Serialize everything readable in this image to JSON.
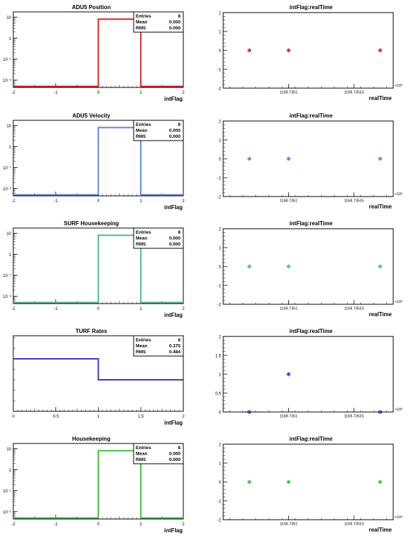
{
  "chart_data": [
    {
      "type": "histogram",
      "title": "ADU5 Position",
      "xlabel": "intFlag",
      "xlim": [
        -2,
        2
      ],
      "y_scale": "log",
      "y_ticks": [
        "10",
        "1",
        "10⁻¹",
        "10⁻²"
      ],
      "x_ticks": [
        "-2",
        "-1",
        "0",
        "1",
        "2"
      ],
      "bins": [
        {
          "x0": 0,
          "x1": 1,
          "value": 8
        }
      ],
      "color": "#cc2a2a",
      "stats": {
        "entries_label": "Entries",
        "entries": "8",
        "mean_label": "Mean",
        "mean": "0.000",
        "rms_label": "RMS",
        "rms": "0.000"
      }
    },
    {
      "type": "scatter",
      "title": "intFlag:realTime",
      "xlabel": "realTime",
      "ylim": [
        -2,
        2
      ],
      "y_ticks": [
        "2",
        "1",
        "0",
        "-1",
        "-2"
      ],
      "x_ticks": [
        "1168.7351",
        "1168.73515"
      ],
      "x_exponent": "×10⁶",
      "points": [
        {
          "x": 1168.73507,
          "y": 0
        },
        {
          "x": 1168.7351,
          "y": 0
        },
        {
          "x": 1168.73517,
          "y": 0
        }
      ],
      "color": "#cc2a2a"
    },
    {
      "type": "histogram",
      "title": "ADU5 Velocity",
      "xlabel": "intFlag",
      "xlim": [
        -2,
        2
      ],
      "y_scale": "log",
      "y_ticks": [
        "10",
        "1",
        "10⁻¹",
        "10⁻²"
      ],
      "x_ticks": [
        "-2",
        "-1",
        "0",
        "1",
        "2"
      ],
      "bins": [
        {
          "x0": 0,
          "x1": 1,
          "value": 8
        }
      ],
      "color": "#5b86d6",
      "stats": {
        "entries_label": "Entries",
        "entries": "8",
        "mean_label": "Mean",
        "mean": "0.000",
        "rms_label": "RMS",
        "rms": "0.000"
      }
    },
    {
      "type": "scatter",
      "title": "intFlag:realTime",
      "xlabel": "realTime",
      "ylim": [
        -2,
        2
      ],
      "y_ticks": [
        "2",
        "1",
        "0",
        "-1",
        "-2"
      ],
      "x_ticks": [
        "1168.7351",
        "1168.73515"
      ],
      "x_exponent": "×10⁶",
      "points": [
        {
          "x": 1168.73507,
          "y": 0
        },
        {
          "x": 1168.7351,
          "y": 0
        },
        {
          "x": 1168.73517,
          "y": 0
        }
      ],
      "color": "#5b86d6"
    },
    {
      "type": "histogram",
      "title": "SURF Housekeeping",
      "xlabel": "intFlag",
      "xlim": [
        -2,
        2
      ],
      "y_scale": "log",
      "y_ticks": [
        "10",
        "1",
        "10⁻¹",
        "10⁻²"
      ],
      "x_ticks": [
        "-2",
        "-1",
        "0",
        "1",
        "2"
      ],
      "bins": [
        {
          "x0": 0,
          "x1": 1,
          "value": 8
        }
      ],
      "color": "#4fb98a",
      "stats": {
        "entries_label": "Entries",
        "entries": "8",
        "mean_label": "Mean",
        "mean": "0.000",
        "rms_label": "RMS",
        "rms": "0.000"
      }
    },
    {
      "type": "scatter",
      "title": "intFlag:realTime",
      "xlabel": "realTime",
      "ylim": [
        -2,
        2
      ],
      "y_ticks": [
        "2",
        "1",
        "0",
        "-1",
        "-2"
      ],
      "x_ticks": [
        "1168.7351",
        "1168.73515"
      ],
      "x_exponent": "×10⁶",
      "points": [
        {
          "x": 1168.73507,
          "y": 0
        },
        {
          "x": 1168.7351,
          "y": 0
        },
        {
          "x": 1168.73517,
          "y": 0
        }
      ],
      "color": "#4fb98a"
    },
    {
      "type": "histogram",
      "title": "TURF Rates",
      "xlabel": "intFlag",
      "xlim": [
        0,
        2
      ],
      "ylim": [
        0,
        7.2
      ],
      "y_scale": "linear",
      "y_ticks": [],
      "x_ticks": [
        "0",
        "0.5",
        "1",
        "1.5",
        "2"
      ],
      "bins": [
        {
          "x0": 0,
          "x1": 1,
          "value": 5
        },
        {
          "x0": 1,
          "x1": 2,
          "value": 3
        }
      ],
      "color": "#3a3ab8",
      "stats": {
        "entries_label": "Entries",
        "entries": "8",
        "mean_label": "Mean",
        "mean": "0.375",
        "rms_label": "RMS",
        "rms": "0.484"
      }
    },
    {
      "type": "scatter",
      "title": "intFlag:realTime",
      "xlabel": "",
      "ylim": [
        0,
        2
      ],
      "y_ticks": [
        "2",
        "1.5",
        "1",
        "0.5",
        "0"
      ],
      "x_ticks": [
        "1168.7351",
        "1168.73515"
      ],
      "x_exponent": "×10⁶",
      "points": [
        {
          "x": 1168.73507,
          "y": 0
        },
        {
          "x": 1168.7351,
          "y": 1
        },
        {
          "x": 1168.73517,
          "y": 0
        }
      ],
      "color": "#3a3ab8"
    },
    {
      "type": "histogram",
      "title": "Housekeeping",
      "xlabel": "intFlag",
      "xlim": [
        -2,
        2
      ],
      "y_scale": "log",
      "y_ticks": [
        "10",
        "1",
        "10⁻¹",
        "10⁻²"
      ],
      "x_ticks": [
        "-2",
        "-1",
        "0",
        "1",
        "2"
      ],
      "bins": [
        {
          "x0": 0,
          "x1": 1,
          "value": 8
        }
      ],
      "color": "#3fbf3f",
      "stats": {
        "entries_label": "Entries",
        "entries": "8",
        "mean_label": "Mean",
        "mean": "0.000",
        "rms_label": "RMS",
        "rms": "0.000"
      }
    },
    {
      "type": "scatter",
      "title": "intFlag:realTime",
      "xlabel": "realTime",
      "ylim": [
        -2,
        2
      ],
      "y_ticks": [
        "2",
        "1",
        "0",
        "-1",
        "-2"
      ],
      "x_ticks": [
        "1168.7351",
        "1168.73515"
      ],
      "x_exponent": "×10⁶",
      "points": [
        {
          "x": 1168.73507,
          "y": 0
        },
        {
          "x": 1168.7351,
          "y": 0
        },
        {
          "x": 1168.73517,
          "y": 0
        }
      ],
      "color": "#3fbf3f"
    }
  ]
}
